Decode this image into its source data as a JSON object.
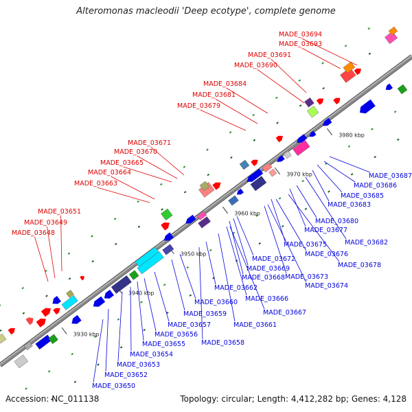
{
  "title": "Alteromonas macleodii 'Deep ecotype', complete genome",
  "accession": "Accession: NC_011138",
  "summary": "Topology: circular; Length: 4,412,282 bp; Genes: 4,128",
  "colors": {
    "forward_label": "#dd0000",
    "reverse_label": "#0000dd",
    "backbone": "#8a8a8a",
    "cds_blue": "#0000e8",
    "cds_red": "#ff0000"
  },
  "scale_ticks": [
    "3930 kbp",
    "3940 kbp",
    "3950 kbp",
    "3960 kbp",
    "3970 kbp",
    "3980 kbp"
  ],
  "forward_labels": [
    "MADE_03694",
    "MADE_03693",
    "MADE_03691",
    "MADE_03690",
    "MADE_03684",
    "MADE_03681",
    "MADE_03679",
    "MADE_03671",
    "MADE_03670",
    "MADE_03665",
    "MADE_03664",
    "MADE_03663",
    "MADE_03651",
    "MADE_03649",
    "MADE_03648"
  ],
  "reverse_labels": [
    "MADE_03687",
    "MADE_03686",
    "MADE_03685",
    "MADE_03683",
    "MADE_03680",
    "MADE_03677",
    "MADE_03682",
    "MADE_03675",
    "MADE_03676",
    "MADE_03678",
    "MADE_03672",
    "MADE_03669",
    "MADE_03668",
    "MADE_03673",
    "MADE_03674",
    "MADE_03662",
    "MADE_03666",
    "MADE_03660",
    "MADE_03667",
    "MADE_03659",
    "MADE_03661",
    "MADE_03657",
    "MADE_03658",
    "MADE_03656",
    "MADE_03655",
    "MADE_03654",
    "MADE_03653",
    "MADE_03652",
    "MADE_03650"
  ]
}
